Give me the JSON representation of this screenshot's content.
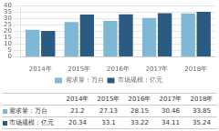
{
  "chart_data": {
    "type": "bar",
    "categories": [
      "2014年",
      "2015年",
      "2016年",
      "2017年",
      "2018年"
    ],
    "series": [
      {
        "name": "需求量：万台",
        "color": "#7eb8d4",
        "values": [
          21.2,
          27.13,
          28.15,
          30.46,
          33.85
        ]
      },
      {
        "name": "市场规模：亿元",
        "color": "#2b5a82",
        "values": [
          20.34,
          33.1,
          33.22,
          34.11,
          35.24
        ]
      }
    ],
    "ylim": [
      0,
      40
    ],
    "yticks": [
      0,
      5,
      10,
      15,
      20,
      25,
      30,
      35,
      40
    ],
    "grid": true,
    "legend": "bottom"
  }
}
